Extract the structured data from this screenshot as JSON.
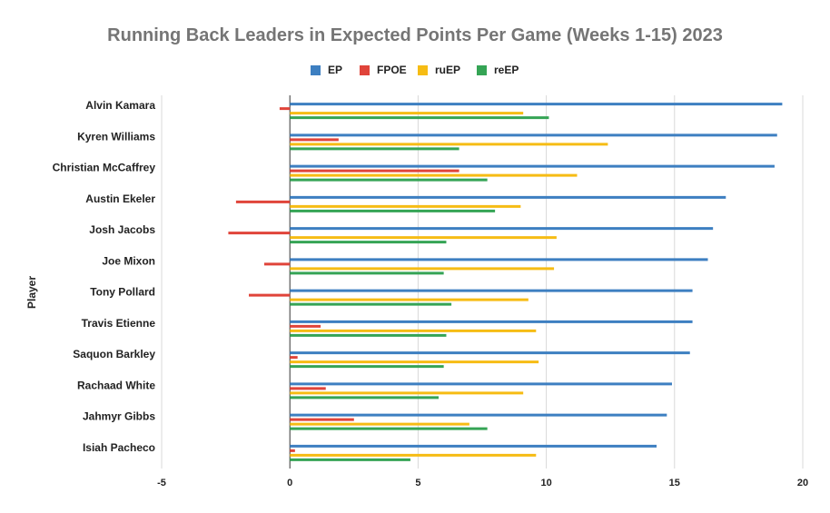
{
  "chart_data": {
    "type": "bar",
    "orientation": "horizontal",
    "title": "Running Back Leaders in Expected Points Per Game (Weeks 1-15) 2023",
    "ylabel": "Player",
    "xlabel": "",
    "xlim": [
      -5,
      20
    ],
    "xticks": [
      -5,
      0,
      5,
      10,
      15,
      20
    ],
    "xtick_labels": [
      "-5",
      "0",
      "5",
      "10",
      "15",
      "20"
    ],
    "grid": "vertical",
    "legend_position": "top",
    "categories": [
      "Alvin Kamara",
      "Kyren Williams",
      "Christian McCaffrey",
      "Austin Ekeler",
      "Josh Jacobs",
      "Joe Mixon",
      "Tony Pollard",
      "Travis Etienne",
      "Saquon Barkley",
      "Rachaad White",
      "Jahmyr Gibbs",
      "Isiah Pacheco"
    ],
    "series": [
      {
        "name": "EP",
        "color": "#3d7fc1",
        "values": [
          19.2,
          19.0,
          18.9,
          17.0,
          16.5,
          16.3,
          15.7,
          15.7,
          15.6,
          14.9,
          14.7,
          14.3
        ]
      },
      {
        "name": "FPOE",
        "color": "#e0443a",
        "values": [
          -0.4,
          1.9,
          6.6,
          -2.1,
          -2.4,
          -1.0,
          -1.6,
          1.2,
          0.3,
          1.4,
          2.5,
          0.2
        ]
      },
      {
        "name": "ruEP",
        "color": "#f6bc14",
        "values": [
          9.1,
          12.4,
          11.2,
          9.0,
          10.4,
          10.3,
          9.3,
          9.6,
          9.7,
          9.1,
          7.0,
          9.6
        ]
      },
      {
        "name": "reEP",
        "color": "#35a455",
        "values": [
          10.1,
          6.6,
          7.7,
          8.0,
          6.1,
          6.0,
          6.3,
          6.1,
          6.0,
          5.8,
          7.7,
          4.7
        ]
      }
    ]
  }
}
